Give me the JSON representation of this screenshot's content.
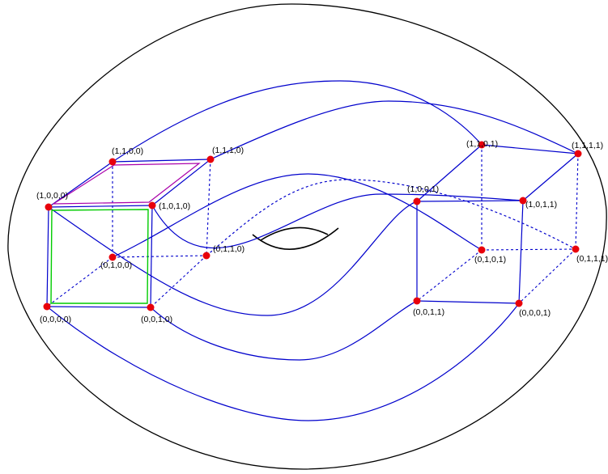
{
  "colors": {
    "surface": "#000000",
    "edges": "#0000cc",
    "nodes": "#e8000b",
    "face_top": "#aa00aa",
    "face_front": "#00cc00"
  },
  "vertices": [
    {
      "id": "a1100",
      "label": "(1,1,0,0)"
    },
    {
      "id": "a1110",
      "label": "(1,1,1,0)"
    },
    {
      "id": "a1000",
      "label": "(1,0,0,0)"
    },
    {
      "id": "a1010",
      "label": "(1,0,1,0)"
    },
    {
      "id": "a0100",
      "label": "(0,1,0,0)"
    },
    {
      "id": "a0110",
      "label": "(0,1,1,0)"
    },
    {
      "id": "a0000",
      "label": "(0,0,0,0)"
    },
    {
      "id": "a0010",
      "label": "(0,0,1,0)"
    },
    {
      "id": "b1101",
      "label": "(1,1,0,1)"
    },
    {
      "id": "b1111",
      "label": "(1,1,1,1)"
    },
    {
      "id": "b1001",
      "label": "(1,0,0,1)"
    },
    {
      "id": "b1011",
      "label": "(1,0,1,1)"
    },
    {
      "id": "b0101",
      "label": "(0,1,0,1)"
    },
    {
      "id": "b0111",
      "label": "(0,1,1,1)"
    },
    {
      "id": "b0011",
      "label": "(0,0,1,1)"
    },
    {
      "id": "b0001",
      "label": "(0,0,0,1)"
    }
  ]
}
